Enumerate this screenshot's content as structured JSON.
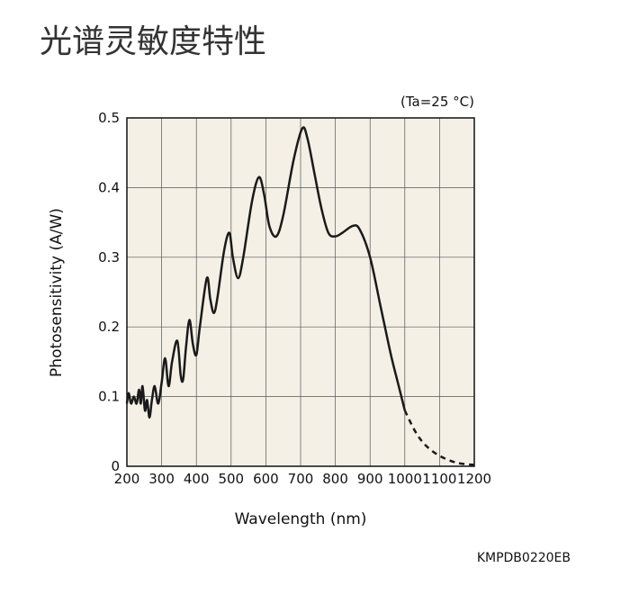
{
  "chart_data": {
    "type": "line",
    "title": "光谱灵敏度特性",
    "annotation": "(Ta=25 °C)",
    "x_label": "Wavelength (nm)",
    "y_label": "Photosensitivity (A/W)",
    "footer": "KMPDB0220EB",
    "xlim": [
      200,
      1200
    ],
    "xticks": [
      200,
      300,
      400,
      500,
      600,
      700,
      800,
      900,
      1000,
      1100,
      1200
    ],
    "ylim": [
      0,
      0.5
    ],
    "yticks": [
      0,
      0.1,
      0.2,
      0.3,
      0.4,
      0.5
    ],
    "grid": true,
    "background": "#f4f0e6",
    "series": [
      {
        "color": "#1a1a1a",
        "style": "solid",
        "x": [
          200,
          205,
          212,
          220,
          228,
          235,
          240,
          245,
          252,
          258,
          265,
          272,
          280,
          290,
          300,
          310,
          320,
          330,
          345,
          355,
          362,
          370,
          380,
          390,
          400,
          410,
          430,
          440,
          450,
          460,
          480,
          495,
          505,
          520,
          535,
          560,
          580,
          595,
          610,
          630,
          650,
          680,
          705,
          720,
          740,
          760,
          780,
          800,
          820,
          850,
          870,
          900,
          930,
          960,
          980,
          1000
        ],
        "values": [
          0.09,
          0.105,
          0.09,
          0.1,
          0.09,
          0.11,
          0.09,
          0.115,
          0.08,
          0.095,
          0.07,
          0.095,
          0.115,
          0.09,
          0.12,
          0.155,
          0.115,
          0.15,
          0.18,
          0.13,
          0.125,
          0.17,
          0.21,
          0.175,
          0.16,
          0.2,
          0.27,
          0.24,
          0.22,
          0.24,
          0.31,
          0.335,
          0.3,
          0.27,
          0.3,
          0.38,
          0.415,
          0.39,
          0.345,
          0.33,
          0.36,
          0.44,
          0.485,
          0.47,
          0.42,
          0.37,
          0.335,
          0.33,
          0.335,
          0.345,
          0.34,
          0.3,
          0.23,
          0.16,
          0.12,
          0.08
        ]
      },
      {
        "color": "#1a1a1a",
        "style": "dashed",
        "x": [
          1000,
          1030,
          1060,
          1100,
          1150,
          1200
        ],
        "values": [
          0.08,
          0.05,
          0.03,
          0.015,
          0.005,
          0.002
        ]
      }
    ]
  }
}
